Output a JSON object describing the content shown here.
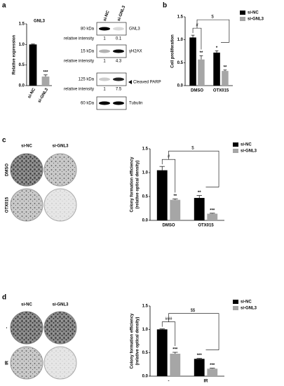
{
  "panel_letters": [
    "a",
    "b",
    "c",
    "d"
  ],
  "chart_data": [
    {
      "type": "bar",
      "title": "GNL3",
      "ylabel": [
        "Relative expression"
      ],
      "categories": [
        "si-NC",
        "si-GNL3"
      ],
      "values": [
        1.0,
        0.22
      ],
      "errors": [
        0.01,
        0.04
      ],
      "colors": [
        "#000000",
        "#a6a6a6"
      ],
      "stars": [
        null,
        "***"
      ],
      "ylim": [
        0,
        1.5
      ],
      "yticks": [
        {
          "value": 0,
          "label": "0.0"
        },
        0.5,
        {
          "value": 1,
          "label": "1.0"
        },
        1.5
      ]
    },
    {
      "type": "grouped_bar",
      "ylabel": [
        "Cell proliferation"
      ],
      "categories": [
        "DMSO",
        "OTX015"
      ],
      "series": [
        {
          "name": "si-NC",
          "color": "#000000",
          "values": [
            1.05,
            0.72
          ],
          "errors": [
            0.05,
            0.04
          ],
          "stars": [
            null,
            "*"
          ]
        },
        {
          "name": "si-GNL3",
          "color": "#a6a6a6",
          "values": [
            0.57,
            0.32
          ],
          "errors": [
            0.08,
            0.02
          ],
          "stars": [
            "**",
            "**"
          ]
        }
      ],
      "brackets": [
        "#",
        "$"
      ],
      "legend": "right",
      "ylim": [
        0,
        1.5
      ],
      "yticks": [
        {
          "value": 0,
          "label": "0.0"
        },
        0.5,
        {
          "value": 1,
          "label": "1.0"
        },
        1.5
      ]
    },
    {
      "type": "grouped_bar",
      "ylabel": [
        "Colony formation efficiency",
        "(relative optical density)"
      ],
      "categories": [
        "DMSO",
        "OTX015"
      ],
      "series": [
        {
          "name": "si-NC",
          "color": "#000000",
          "values": [
            1.05,
            0.47
          ],
          "errors": [
            0.08,
            0.05
          ],
          "stars": [
            null,
            "**"
          ]
        },
        {
          "name": "si-GNL3",
          "color": "#a6a6a6",
          "values": [
            0.43,
            0.14
          ],
          "errors": [
            0.02,
            0.01
          ],
          "stars": [
            "**",
            "***"
          ]
        }
      ],
      "brackets": [
        "#",
        "$"
      ],
      "legend": "right",
      "ylim": [
        0,
        1.5
      ],
      "yticks": [
        {
          "value": 0,
          "label": "0.0"
        },
        0.5,
        {
          "value": 1,
          "label": "1.0"
        },
        1.5
      ]
    },
    {
      "type": "grouped_bar",
      "ylabel": [
        "Colony formation efficiency",
        "(relative optical density)"
      ],
      "categories": [
        "-",
        "IR"
      ],
      "series": [
        {
          "name": "si-NC",
          "color": "#000000",
          "values": [
            1.0,
            0.37
          ],
          "errors": [
            0.01,
            0.01
          ],
          "stars": [
            null,
            "***"
          ]
        },
        {
          "name": "si-GNL3",
          "color": "#a6a6a6",
          "values": [
            0.48,
            0.16
          ],
          "errors": [
            0.03,
            0.01
          ],
          "stars": [
            "***",
            "***"
          ]
        }
      ],
      "brackets": [
        "###",
        "$$"
      ],
      "legend": "right",
      "ylim": [
        0,
        1.5
      ],
      "yticks": [
        {
          "value": 0,
          "label": "0.0"
        },
        0.5,
        {
          "value": 1,
          "label": "1.0"
        },
        1.5
      ]
    }
  ],
  "blot": {
    "lanes": [
      "si-NC",
      "si-GNL3"
    ],
    "intensity_label": "relative intensity",
    "bands": [
      {
        "kda": "80 kDa",
        "label": "GNL3",
        "intensity": [
          1,
          0.1
        ]
      },
      {
        "kda": "15 kDa",
        "label": "γH2AX",
        "intensity": [
          1,
          4.3
        ]
      },
      {
        "kda": "125 kDa",
        "label": "Cleaved PARP",
        "intensity": [
          1,
          7.5
        ]
      },
      {
        "kda": "60 kDa",
        "label": "Tubulin"
      }
    ]
  },
  "colony_c": {
    "columns": [
      "si-NC",
      "si-GNL3"
    ],
    "rows": [
      "DMSO",
      "OTX015"
    ]
  },
  "colony_d": {
    "columns": [
      "si-NC",
      "si-GNL3"
    ],
    "rows": [
      "-",
      "IR"
    ]
  }
}
